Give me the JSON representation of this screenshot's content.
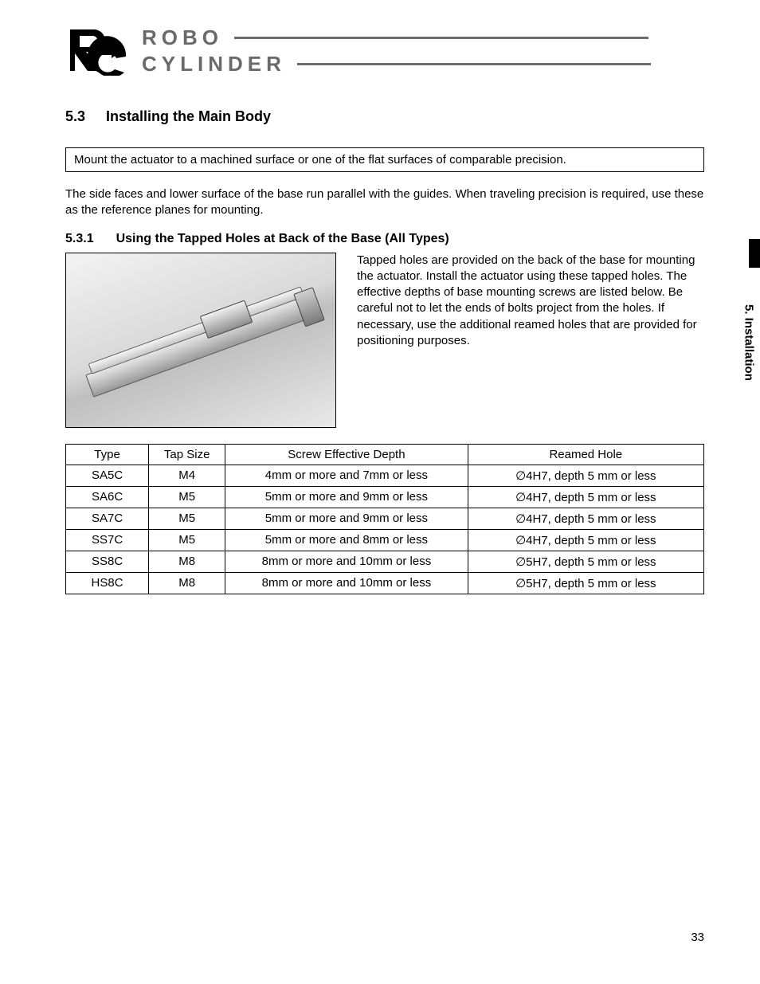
{
  "logo": {
    "line1": "ROBO",
    "line2": "CYLINDER",
    "mark_color": "#000000",
    "text_color": "#6a6a6a"
  },
  "section": {
    "number": "5.3",
    "title": "Installing the Main Body"
  },
  "callout": "Mount the actuator to a machined surface or one of the flat surfaces of comparable precision.",
  "paragraph1": "The side faces and lower surface of the base run parallel with the guides. When traveling precision is required, use these as the reference planes for mounting.",
  "subsection": {
    "number": "5.3.1",
    "title": "Using the Tapped Holes at Back of the Base (All Types)"
  },
  "body_text": "Tapped holes are provided on the back of the base for mounting the actuator. Install the actuator using these tapped holes. The effective depths of base mounting screws are listed below. Be careful not to let the ends of bolts project from the holes. If necessary, use the additional reamed holes that are provided for positioning purposes.",
  "table": {
    "columns": [
      "Type",
      "Tap Size",
      "Screw Effective Depth",
      "Reamed Hole"
    ],
    "col_widths_pct": [
      13,
      12,
      38,
      37
    ],
    "rows": [
      [
        "SA5C",
        "M4",
        "4mm or more and 7mm or less",
        "∅4H7, depth 5 mm or less"
      ],
      [
        "SA6C",
        "M5",
        "5mm or more and 9mm or less",
        "∅4H7, depth 5 mm or less"
      ],
      [
        "SA7C",
        "M5",
        "5mm or more and 9mm or less",
        "∅4H7, depth 5 mm or less"
      ],
      [
        "SS7C",
        "M5",
        "5mm or more and 8mm or less",
        "∅4H7, depth 5 mm or less"
      ],
      [
        "SS8C",
        "M8",
        "8mm or more and 10mm or less",
        "∅5H7, depth 5 mm or less"
      ],
      [
        "HS8C",
        "M8",
        "8mm or more and 10mm or less",
        "∅5H7, depth 5 mm or less"
      ]
    ],
    "border_color": "#000000",
    "font_size_pt": 11
  },
  "side_tab": "5. Installation",
  "page_number": "33",
  "colors": {
    "page_bg": "#ffffff",
    "text": "#000000",
    "rule": "#000000"
  }
}
